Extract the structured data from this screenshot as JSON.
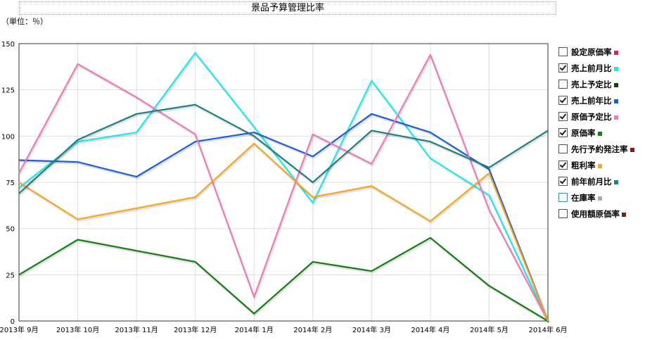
{
  "chart_data": {
    "type": "line",
    "title": "景品予算管理比率",
    "unit_label": "（単位：％）",
    "categories": [
      "2013年 9月",
      "2013年 10月",
      "2013年 11月",
      "2013年 12月",
      "2014年 1月",
      "2014年 2月",
      "2014年 3月",
      "2014年 4月",
      "2014年 5月",
      "2014年 6月"
    ],
    "ylim": [
      0,
      150
    ],
    "yticks": [
      0,
      25,
      50,
      75,
      100,
      125,
      150
    ],
    "grid": true,
    "legend_position": "right",
    "series": [
      {
        "name": "売上前月比",
        "color": "#22e6f0",
        "values": [
          72,
          97,
          102,
          145,
          105,
          64,
          130,
          88,
          68,
          0
        ]
      },
      {
        "name": "売上前年比",
        "color": "#1e5fd6",
        "values": [
          87,
          86,
          78,
          97,
          102,
          89,
          112,
          102,
          82,
          0
        ]
      },
      {
        "name": "原価予定比",
        "color": "#f07ab8",
        "values": [
          80,
          139,
          121,
          101,
          13,
          101,
          85,
          144,
          60,
          0
        ]
      },
      {
        "name": "原価率",
        "color": "#118011",
        "values": [
          25,
          44,
          38,
          32,
          4,
          32,
          27,
          45,
          19,
          0
        ]
      },
      {
        "name": "粗利率",
        "color": "#f5a628",
        "values": [
          75,
          55,
          61,
          67,
          96,
          67,
          73,
          54,
          80,
          0
        ]
      },
      {
        "name": "前年前月比",
        "color": "#1e8080",
        "values": [
          69,
          98,
          112,
          117,
          100,
          75,
          103,
          97,
          83,
          103
        ]
      }
    ],
    "legend": [
      {
        "label": "設定原価率",
        "checked": false,
        "color": "#e0206a"
      },
      {
        "label": "売上前月比",
        "checked": true,
        "color": "#22e6f0"
      },
      {
        "label": "売上予定比",
        "checked": false,
        "color": "#104010"
      },
      {
        "label": "売上前年比",
        "checked": true,
        "color": "#1e5fd6"
      },
      {
        "label": "原価予定比",
        "checked": true,
        "color": "#f07ab8"
      },
      {
        "label": "原価率",
        "checked": true,
        "color": "#118011"
      },
      {
        "label": "先行予約発注率",
        "checked": false,
        "color": "#8b1a1a"
      },
      {
        "label": "粗利率",
        "checked": true,
        "color": "#f5a628"
      },
      {
        "label": "前年前月比",
        "checked": true,
        "color": "#1e8080"
      },
      {
        "label": "在庫率",
        "checked": false,
        "color": "#aaaaaa",
        "box_color": "#3a8fa8"
      },
      {
        "label": "使用額原価率",
        "checked": false,
        "color": "#6b2a10"
      }
    ]
  }
}
